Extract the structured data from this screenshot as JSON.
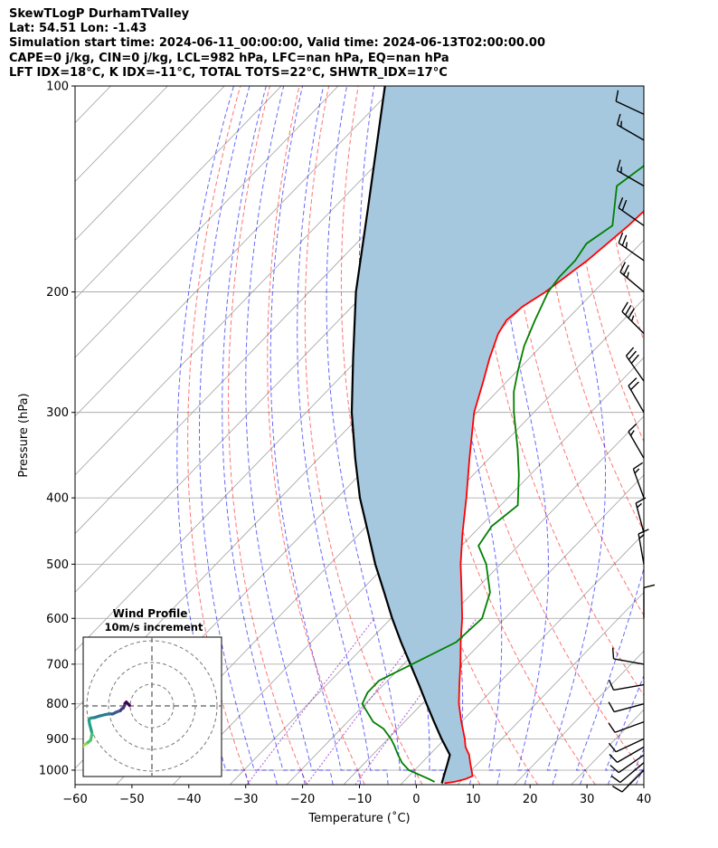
{
  "header": {
    "title": "SkewTLogP DurhamTValley",
    "latlon": "Lat: 54.51   Lon: -1.43",
    "times": "Simulation start time: 2024-06-11_00:00:00, Valid time: 2024-06-13T02:00:00.00",
    "indices1": "CAPE=0 j/kg, CIN=0 j/kg, LCL=982 hPa, LFC=nan hPa, EQ=nan hPa",
    "indices2": "LFT IDX=18°C, K IDX=-11°C, TOTAL TOTS=22°C, SHWTR_IDX=17°C"
  },
  "colors": {
    "temperature": "#ff0000",
    "dewpoint": "#008000",
    "parcel": "#000000",
    "cape_fill": "#a6c8df",
    "dry_adiabat": "#ff0000",
    "moist_adiabat": "#0000ff",
    "mixing_ratio": "#8000c0",
    "isotherm": "#a0a0a0"
  },
  "chart_data": [
    {
      "type": "line",
      "name": "skew-t",
      "xlabel": "Temperature (˚C)",
      "ylabel": "Pressure (hPa)",
      "xlim": [
        -60,
        40
      ],
      "ylim": [
        1050,
        100
      ],
      "xticks": [
        "−60",
        "−50",
        "−40",
        "−30",
        "−20",
        "−10",
        "0",
        "10",
        "20",
        "30",
        "40"
      ],
      "yticks": [
        "100",
        "200",
        "300",
        "400",
        "500",
        "600",
        "700",
        "800",
        "900",
        "1000"
      ],
      "series": [
        {
          "name": "Temperature",
          "pressure": [
            1045,
            1040,
            1030,
            1020,
            1000,
            975,
            950,
            925,
            900,
            850,
            800,
            750,
            700,
            650,
            600,
            550,
            500,
            450,
            400,
            350,
            300,
            270,
            250,
            230,
            220,
            210,
            200,
            180,
            160,
            140,
            120,
            110,
            100
          ],
          "values": [
            7.5,
            9,
            10.5,
            11.2,
            10,
            8.5,
            7,
            5,
            3.5,
            0,
            -3.5,
            -6.7,
            -10,
            -13.7,
            -17.5,
            -22,
            -27,
            -32,
            -37.3,
            -43.5,
            -50.5,
            -54.2,
            -57,
            -59.7,
            -60.5,
            -60,
            -58.5,
            -56.5,
            -55.2,
            -54.5,
            -54.8,
            -55,
            -55.2
          ]
        },
        {
          "name": "Dewpoint",
          "pressure": [
            1040,
            1030,
            1000,
            975,
            950,
            920,
            900,
            870,
            850,
            800,
            770,
            740,
            700,
            650,
            600,
            550,
            500,
            470,
            440,
            410,
            370,
            340,
            300,
            280,
            260,
            240,
            220,
            200,
            190,
            180,
            170,
            160,
            140,
            120,
            100
          ],
          "values": [
            5.5,
            4,
            -1,
            -3.5,
            -5.5,
            -7.8,
            -9.5,
            -12.5,
            -15.5,
            -20.5,
            -21.5,
            -21.5,
            -18.5,
            -14.5,
            -14,
            -17,
            -22.5,
            -27,
            -28,
            -27,
            -32,
            -36.5,
            -43.5,
            -47,
            -50,
            -53,
            -55.5,
            -58,
            -58.6,
            -58.6,
            -59.5,
            -58,
            -64,
            -61,
            -58
          ]
        },
        {
          "name": "Parcel",
          "pressure": [
            1045,
            982,
            950,
            900,
            850,
            800,
            750,
            700,
            650,
            600,
            550,
            500,
            450,
            400,
            350,
            300,
            250,
            200,
            150,
            100
          ],
          "values": [
            7,
            4.8,
            3.6,
            -0.6,
            -4.8,
            -9.2,
            -13.8,
            -18.8,
            -24.2,
            -29.8,
            -35.6,
            -42,
            -48.6,
            -56,
            -63.6,
            -72,
            -81,
            -91.8,
            -104.2,
            -121.8
          ]
        }
      ],
      "wind_barbs": [
        {
          "pressure": 1000,
          "speed": 10,
          "direction": 225
        },
        {
          "pressure": 975,
          "speed": 10,
          "direction": 230
        },
        {
          "pressure": 950,
          "speed": 10,
          "direction": 235
        },
        {
          "pressure": 925,
          "speed": 10,
          "direction": 240
        },
        {
          "pressure": 900,
          "speed": 10,
          "direction": 245
        },
        {
          "pressure": 850,
          "speed": 10,
          "direction": 250
        },
        {
          "pressure": 800,
          "speed": 10,
          "direction": 255
        },
        {
          "pressure": 750,
          "speed": 10,
          "direction": 260
        },
        {
          "pressure": 700,
          "speed": 10,
          "direction": 280
        },
        {
          "pressure": 600,
          "speed": 10,
          "direction": 360
        },
        {
          "pressure": 500,
          "speed": 15,
          "direction": 350
        },
        {
          "pressure": 450,
          "speed": 15,
          "direction": 345
        },
        {
          "pressure": 400,
          "speed": 15,
          "direction": 340
        },
        {
          "pressure": 350,
          "speed": 15,
          "direction": 330
        },
        {
          "pressure": 300,
          "speed": 20,
          "direction": 330
        },
        {
          "pressure": 270,
          "speed": 30,
          "direction": 325
        },
        {
          "pressure": 230,
          "speed": 35,
          "direction": 315
        },
        {
          "pressure": 200,
          "speed": 25,
          "direction": 310
        },
        {
          "pressure": 180,
          "speed": 25,
          "direction": 305
        },
        {
          "pressure": 160,
          "speed": 20,
          "direction": 305
        },
        {
          "pressure": 140,
          "speed": 15,
          "direction": 300
        },
        {
          "pressure": 120,
          "speed": 15,
          "direction": 300
        },
        {
          "pressure": 110,
          "speed": 10,
          "direction": 295
        }
      ]
    },
    {
      "type": "line",
      "name": "hodograph",
      "title": "Wind Profile",
      "subtitle": "10m/s increment",
      "ring_spacing": 10,
      "rings": 3,
      "u": [
        -10.3,
        -11.8,
        -12,
        -12.4,
        -12.6,
        -13.2,
        -13.8,
        -14.6,
        -15.2,
        -16.5,
        -18,
        -19.8,
        -21.5,
        -24,
        -26.5,
        -28.3,
        -29,
        -28.7,
        -28,
        -27.6,
        -28.2,
        -29.3,
        -30.4,
        -31.6,
        -32.4,
        -33,
        -33.6,
        -34.6,
        -35.5,
        -36.2
      ],
      "v": [
        0.2,
        1.8,
        1.3,
        1.2,
        0.2,
        -1,
        -1.3,
        -2.2,
        -2.4,
        -2.9,
        -3.7,
        -3.7,
        -4,
        -4.6,
        -5.4,
        -5.6,
        -6.6,
        -8.4,
        -11,
        -12.8,
        -15.7,
        -16.7,
        -17.5,
        -18.2,
        -19.1,
        -19.8,
        -19.9,
        -20.5,
        -20.4,
        -20.1
      ]
    }
  ]
}
